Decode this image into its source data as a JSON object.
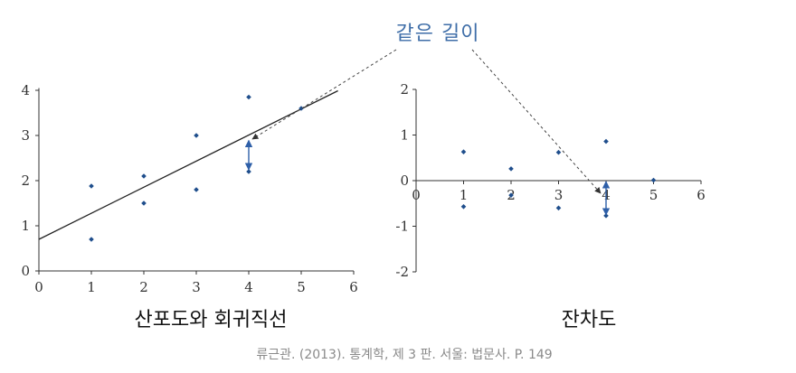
{
  "callout": {
    "label": "같은 길이",
    "color": "#3f6ea8"
  },
  "source": "류근관. (2013). 통계학, 제 3 판. 서울: 법문사. P. 149",
  "colors": {
    "point": "#1f4e8c",
    "arrow": "#2e5fa8",
    "line": "#222222",
    "axis": "#333333"
  },
  "chart_data": [
    {
      "type": "scatter",
      "title": "산포도와 회귀직선",
      "xlim": [
        0,
        6
      ],
      "ylim": [
        0,
        4
      ],
      "xticks": [
        "0",
        "1",
        "2",
        "3",
        "4",
        "5",
        "6"
      ],
      "yticks": [
        "0",
        "1",
        "2",
        "3",
        "4"
      ],
      "points": [
        {
          "x": 1,
          "y": 0.7
        },
        {
          "x": 1,
          "y": 1.88
        },
        {
          "x": 2,
          "y": 1.5
        },
        {
          "x": 2,
          "y": 2.1
        },
        {
          "x": 3,
          "y": 1.8
        },
        {
          "x": 3,
          "y": 3.0
        },
        {
          "x": 4,
          "y": 2.2
        },
        {
          "x": 4,
          "y": 3.85
        },
        {
          "x": 5,
          "y": 3.6
        }
      ],
      "regression_line": {
        "x": [
          0,
          5.7
        ],
        "y": [
          0.7,
          3.99
        ]
      },
      "highlight_segment": {
        "x": 4,
        "y_from": 2.2,
        "y_to": 2.91
      }
    },
    {
      "type": "scatter",
      "title": "잔차도",
      "xlim": [
        0,
        6
      ],
      "ylim": [
        -2,
        2
      ],
      "xticks": [
        "0",
        "1",
        "2",
        "3",
        "4",
        "5",
        "6"
      ],
      "yticks": [
        "2",
        "1",
        "0",
        "-1",
        "-2"
      ],
      "points": [
        {
          "x": 1,
          "y": 0.63
        },
        {
          "x": 1,
          "y": -0.57
        },
        {
          "x": 2,
          "y": 0.26
        },
        {
          "x": 2,
          "y": -0.32
        },
        {
          "x": 3,
          "y": 0.62
        },
        {
          "x": 3,
          "y": -0.6
        },
        {
          "x": 4,
          "y": 0.86
        },
        {
          "x": 4,
          "y": -0.77
        },
        {
          "x": 5,
          "y": 0.01
        }
      ],
      "highlight_segment": {
        "x": 4,
        "y_from": 0,
        "y_to": -0.71
      }
    }
  ]
}
